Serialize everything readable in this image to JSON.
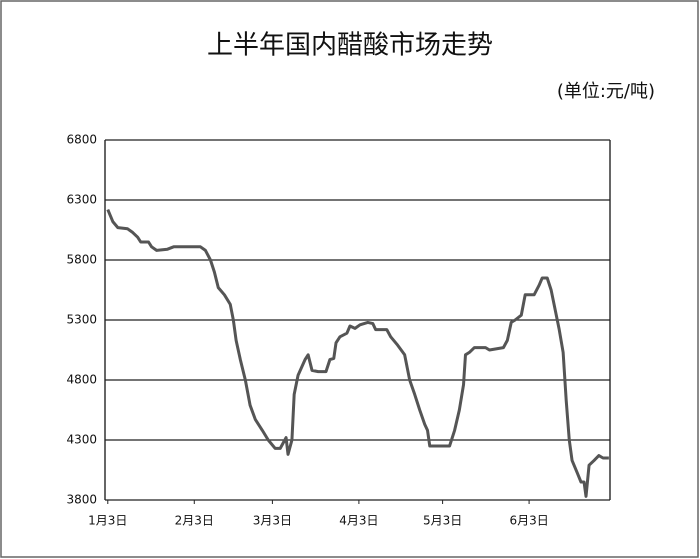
{
  "chart_data": {
    "type": "line",
    "title": "上半年国内醋酸市场走势",
    "subtitle": "(单位:元/吨)",
    "x": [
      0,
      1.8,
      3.6,
      7.1,
      8.9,
      10.7,
      11.8,
      14.6,
      15.7,
      17.5,
      21.4,
      23.6,
      33.2,
      35,
      36.8,
      38.2,
      39.6,
      41.8,
      43.9,
      45,
      46,
      47.5,
      49.3,
      51,
      52.9,
      55.4,
      57.5,
      60,
      61.8,
      63.9,
      64.6,
      66,
      66.8,
      68.2,
      70.7,
      71.8,
      73.2,
      75.4,
      78.2,
      79.6,
      81,
      81.8,
      83.2,
      85.7,
      86.8,
      88.6,
      90.4,
      93.2,
      95,
      96,
      100,
      101.4,
      103.9,
      106.4,
      108.2,
      110,
      111.8,
      113.6,
      114.6,
      115.4,
      122.5,
      124.3,
      126,
      127.5,
      128.2,
      129.6,
      131.4,
      135.4,
      136.8,
      141.8,
      143.2,
      144.6,
      146,
      148.2,
      149.6,
      152.8,
      154.6,
      155.7,
      157.5,
      158.9,
      160.4,
      161.8,
      163.2,
      164.3,
      165.4,
      166.4,
      168.2,
      169.6,
      170.7,
      171.4,
      172.5,
      174.3,
      176,
      177.5,
      179.6
    ],
    "series": [
      {
        "color": "#555555",
        "values": [
          6220,
          6120,
          6070,
          6060,
          6030,
          5990,
          5950,
          5950,
          5910,
          5880,
          5890,
          5910,
          5910,
          5880,
          5800,
          5700,
          5570,
          5510,
          5430,
          5300,
          5130,
          4970,
          4800,
          4590,
          4470,
          4380,
          4300,
          4230,
          4230,
          4320,
          4180,
          4300,
          4680,
          4840,
          4970,
          5010,
          4880,
          4870,
          4870,
          4970,
          4980,
          5110,
          5160,
          5190,
          5250,
          5230,
          5260,
          5280,
          5270,
          5220,
          5220,
          5160,
          5090,
          5010,
          4800,
          4680,
          4550,
          4430,
          4380,
          4250,
          4250,
          4380,
          4550,
          4760,
          5010,
          5030,
          5070,
          5070,
          5050,
          5070,
          5130,
          5280,
          5300,
          5340,
          5510,
          5510,
          5590,
          5650,
          5650,
          5550,
          5380,
          5220,
          5030,
          4630,
          4300,
          4130,
          4030,
          3950,
          3950,
          3830,
          4090,
          4130,
          4170,
          4150,
          4150
        ]
      }
    ],
    "xlim": [
      -1,
      180
    ],
    "xticks": [
      {
        "value": 0,
        "label": "1月3日"
      },
      {
        "value": 31,
        "label": "2月3日"
      },
      {
        "value": 59,
        "label": "3月3日"
      },
      {
        "value": 90,
        "label": "4月3日"
      },
      {
        "value": 120,
        "label": "5月3日"
      },
      {
        "value": 151,
        "label": "6月3日"
      }
    ],
    "ylim": [
      3800,
      6800
    ],
    "yticks": [
      3800,
      4300,
      4800,
      5300,
      5800,
      6300,
      6800
    ],
    "grid": true
  }
}
